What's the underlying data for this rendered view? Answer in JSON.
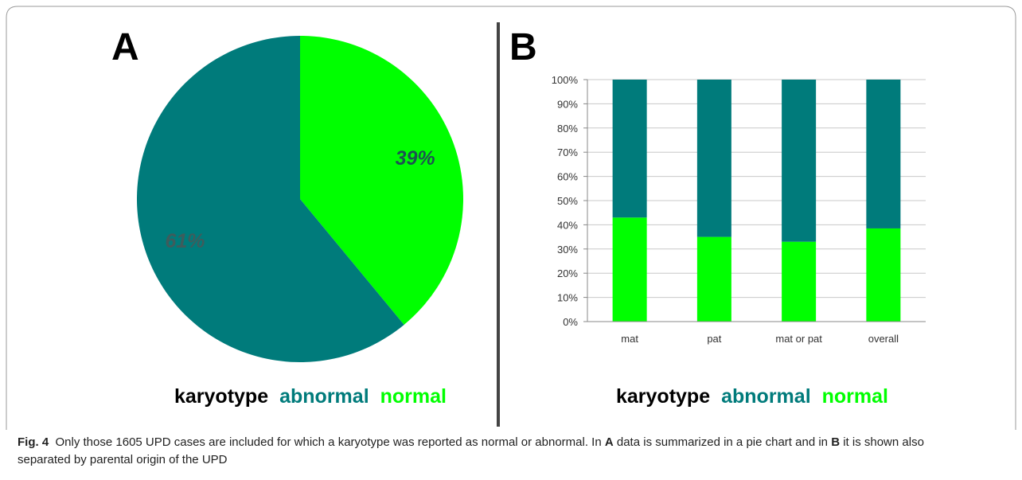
{
  "chart_data": [
    {
      "type": "pie",
      "panel": "A",
      "legend_title": "karyotype",
      "categories": [
        "abnormal",
        "normal"
      ],
      "values": [
        61,
        39
      ],
      "value_labels": [
        "61%",
        "39%"
      ],
      "colors": [
        "#007b7b",
        "#00ff00"
      ],
      "label_colors": [
        "#3e5c5c",
        "#1d5252"
      ]
    },
    {
      "type": "bar",
      "panel": "B",
      "legend_title": "karyotype",
      "stacked": true,
      "grid": true,
      "categories": [
        "mat",
        "pat",
        "mat or pat",
        "overall"
      ],
      "series": [
        {
          "name": "normal",
          "color": "#00ff00",
          "values": [
            43,
            35,
            33,
            38.5
          ]
        },
        {
          "name": "abnormal",
          "color": "#007b7b",
          "values": [
            57,
            65,
            67,
            61.5
          ]
        }
      ],
      "ylim": [
        0,
        100
      ],
      "yticks": [
        {
          "value": 0,
          "label": "0%"
        },
        {
          "value": 10,
          "label": "10%"
        },
        {
          "value": 20,
          "label": "20%"
        },
        {
          "value": 30,
          "label": "30%"
        },
        {
          "value": 40,
          "label": "40%"
        },
        {
          "value": 50,
          "label": "50%"
        },
        {
          "value": 60,
          "label": "60%"
        },
        {
          "value": 70,
          "label": "70%"
        },
        {
          "value": 80,
          "label": "80%"
        },
        {
          "value": 90,
          "label": "90%"
        },
        {
          "value": 100,
          "label": "100%"
        }
      ]
    }
  ],
  "caption": [
    {
      "text": "Fig. 4",
      "bold": true
    },
    {
      "text": "  Only those 1605 UPD cases are included for which a karyotype was reported as normal or abnormal. In ",
      "bold": false
    },
    {
      "text": "A",
      "bold": true
    },
    {
      "text": " data is summarized in a pie chart and in ",
      "bold": false
    },
    {
      "text": "B",
      "bold": true
    },
    {
      "text": " it is shown also separated by parental origin of the UPD",
      "bold": false
    }
  ]
}
